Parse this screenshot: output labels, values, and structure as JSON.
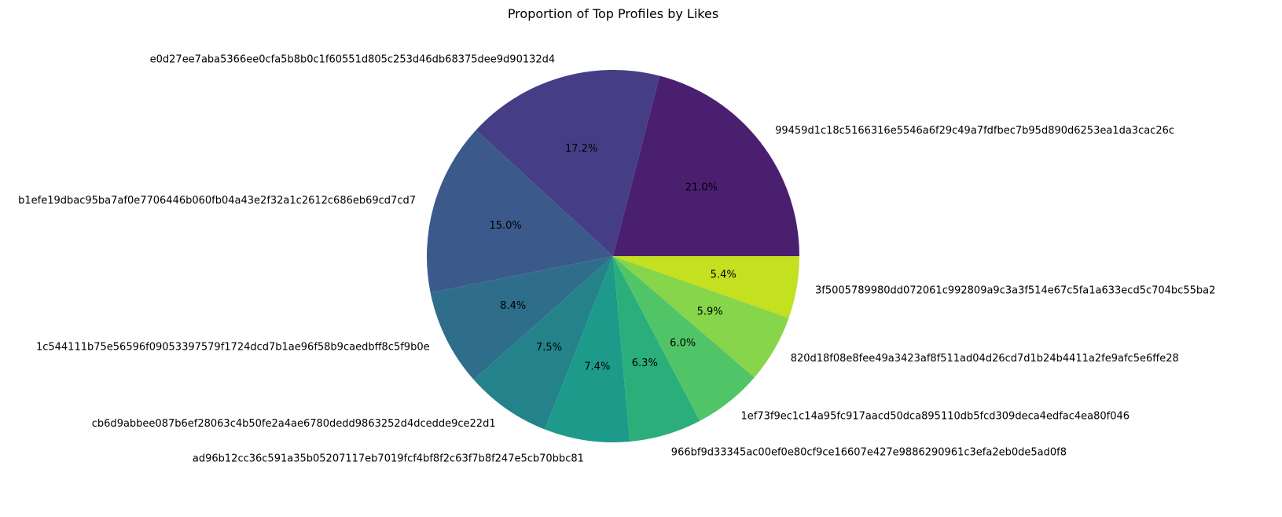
{
  "chart_data": {
    "type": "pie",
    "title": "Proportion of Top Profiles by Likes",
    "labels": [
      "99459d1c18c5166316e5546a6f29c49a7fdfbec7b95d890d6253ea1da3cac26c",
      "e0d27ee7aba5366ee0cfa5b8b0c1f60551d805c253d46db68375dee9d90132d4",
      "b1efe19dbac95ba7af0e7706446b060fb04a43e2f32a1c2612c686eb69cd7cd7",
      "1c544111b75e56596f09053397579f1724dcd7b1ae96f58b9caedbff8c5f9b0e",
      "cb6d9abbee087b6ef28063c4b50fe2a4ae6780dedd9863252d4dcedde9ce22d1",
      "ad96b12cc36c591a35b05207117eb7019fcf4bf8f2c63f7b8f247e5cb70bbc81",
      "966bf9d33345ac00ef0e80cf9ce16607e427e9886290961c3efa2eb0de5ad0f8",
      "1ef73f9ec1c14a95fc917aacd50dca895110db5fcd309deca4edfac4ea80f046",
      "820d18f08e8fee49a3423af8f511ad04d26cd7d1b24b4411a2fe9afc5e6ffe28",
      "3f5005789980dd072061c992809a9c3a3f514e67c5fa1a633ecd5c704bc55ba2"
    ],
    "values": [
      21.0,
      17.2,
      15.0,
      8.4,
      7.5,
      7.4,
      6.3,
      6.0,
      5.9,
      5.4
    ],
    "percent_labels": [
      "21.0%",
      "17.2%",
      "15.0%",
      "8.4%",
      "7.5%",
      "7.4%",
      "6.3%",
      "6.0%",
      "5.9%",
      "5.4%"
    ],
    "colors": [
      "#4a1f70",
      "#453e86",
      "#3b5a8b",
      "#2e6e8a",
      "#24838a",
      "#1e9a8a",
      "#2baf7a",
      "#52c468",
      "#86d54a",
      "#c3e021"
    ],
    "start_angle_deg": 0,
    "direction": "counterclockwise"
  }
}
